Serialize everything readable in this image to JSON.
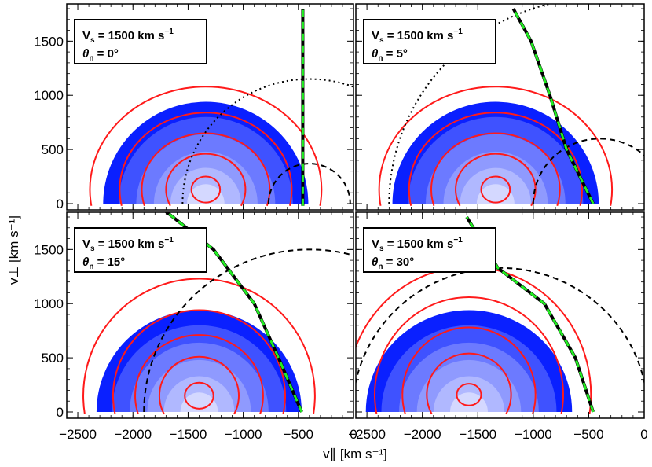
{
  "chart_data": {
    "type": "contour",
    "title": "",
    "xlabel": "v∥ [km s⁻¹]",
    "ylabel": "v⊥ [km s⁻¹]",
    "xlim": [
      -2600,
      0
    ],
    "ylim": [
      -40,
      1800
    ],
    "xticks_left": [
      "−2500",
      "−2000",
      "−1500",
      "−1000",
      "−500",
      "0"
    ],
    "xticks_right": [
      "−2500",
      "−2000",
      "−1500",
      "−1000",
      "−500",
      "0"
    ],
    "xticks_values": [
      -2500,
      -2000,
      -1500,
      -1000,
      -500,
      0
    ],
    "yticks_labels": [
      "0",
      "500",
      "1000",
      "1500"
    ],
    "yticks_values": [
      0,
      500,
      1000,
      1500
    ],
    "panels": [
      {
        "id": "p0",
        "legend_line1": "V",
        "legend_sub": "s",
        "legend_value": " = 1500 km s",
        "legend_exp": "−1",
        "legend_line2": "θ",
        "legend_sub2": "n",
        "legend_value2": " = 0°",
        "theta_deg": 0,
        "blue_center": [
          -1340,
          0
        ],
        "blue_radii": [
          [
            930,
            940
          ],
          [
            790,
            800
          ],
          [
            630,
            640
          ],
          [
            470,
            480
          ],
          [
            320,
            330
          ],
          [
            170,
            180
          ]
        ],
        "red_center": [
          -1340,
          130
        ],
        "red_radii": [
          [
            1050,
            950
          ],
          [
            780,
            710
          ],
          [
            580,
            520
          ],
          [
            360,
            330
          ],
          [
            130,
            120
          ]
        ],
        "boundary_line": [
          [
            -460,
            -20
          ],
          [
            -460,
            1800
          ]
        ],
        "dashed_circle": {
          "center": [
            -400,
            0
          ],
          "radius": 370
        },
        "dotted_circle": {
          "center": [
            -400,
            0
          ],
          "radius": 1150
        }
      },
      {
        "id": "p1",
        "legend_line1": "V",
        "legend_sub": "s",
        "legend_value": " = 1500 km s",
        "legend_exp": "−1",
        "legend_line2": "θ",
        "legend_sub2": "n",
        "legend_value2": " = 5°",
        "theta_deg": 5,
        "blue_center": [
          -1340,
          0
        ],
        "blue_radii": [
          [
            930,
            940
          ],
          [
            790,
            800
          ],
          [
            630,
            640
          ],
          [
            470,
            480
          ],
          [
            320,
            330
          ],
          [
            170,
            180
          ]
        ],
        "red_center": [
          -1340,
          130
        ],
        "red_radii": [
          [
            1050,
            950
          ],
          [
            780,
            710
          ],
          [
            580,
            520
          ],
          [
            360,
            330
          ],
          [
            130,
            120
          ]
        ],
        "boundary_line": [
          [
            -460,
            0
          ],
          [
            -700,
            500
          ],
          [
            -850,
            1000
          ],
          [
            -1020,
            1500
          ],
          [
            -1180,
            1800
          ]
        ],
        "dashed_circle": {
          "center": [
            -400,
            0
          ],
          "radius": 600
        },
        "dotted_circle": {
          "center": [
            -400,
            0
          ],
          "radius": 1900
        }
      },
      {
        "id": "p2",
        "legend_line1": "V",
        "legend_sub": "s",
        "legend_value": " = 1500 km s",
        "legend_exp": "−1",
        "legend_line2": "θ",
        "legend_sub2": "n",
        "legend_value2": " = 15°",
        "theta_deg": 15,
        "blue_center": [
          -1400,
          0
        ],
        "blue_radii": [
          [
            930,
            940
          ],
          [
            790,
            800
          ],
          [
            630,
            640
          ],
          [
            470,
            480
          ],
          [
            320,
            330
          ],
          [
            170,
            180
          ]
        ],
        "red_center": [
          -1400,
          150
        ],
        "red_radii": [
          [
            1050,
            1080
          ],
          [
            780,
            790
          ],
          [
            580,
            560
          ],
          [
            360,
            360
          ],
          [
            130,
            120
          ]
        ],
        "boundary_line": [
          [
            -470,
            0
          ],
          [
            -680,
            500
          ],
          [
            -900,
            1000
          ],
          [
            -1270,
            1500
          ],
          [
            -1700,
            1850
          ]
        ],
        "dashed_circle": {
          "center": [
            -400,
            0
          ],
          "radius": 1500
        }
      },
      {
        "id": "p3",
        "legend_line1": "V",
        "legend_sub": "s",
        "legend_value": " = 1500 km s",
        "legend_exp": "−1",
        "legend_line2": "θ",
        "legend_sub2": "n",
        "legend_value2": " = 30°",
        "theta_deg": 30,
        "blue_center": [
          -1580,
          0
        ],
        "blue_radii": [
          [
            930,
            940
          ],
          [
            790,
            800
          ],
          [
            630,
            640
          ],
          [
            470,
            480
          ],
          [
            320,
            330
          ],
          [
            170,
            180
          ]
        ],
        "red_center": [
          -1580,
          160
        ],
        "red_radii": [
          [
            1100,
            1180
          ],
          [
            850,
            900
          ],
          [
            600,
            620
          ],
          [
            380,
            380
          ],
          [
            110,
            100
          ]
        ],
        "boundary_line": [
          [
            -460,
            0
          ],
          [
            -620,
            500
          ],
          [
            -900,
            1000
          ],
          [
            -1320,
            1330
          ],
          [
            -1600,
            1800
          ]
        ],
        "dashed_circle": {
          "center": [
            -1300,
            0
          ],
          "radius": 1330
        }
      }
    ]
  },
  "colors": {
    "blue_levels": [
      "#0a20ff",
      "#3f52ff",
      "#6c7aff",
      "#8f9afe",
      "#b0b8ff",
      "#d4d8ff"
    ],
    "red": "#ff1a1a",
    "green": "#22ee22",
    "black": "#000000"
  }
}
